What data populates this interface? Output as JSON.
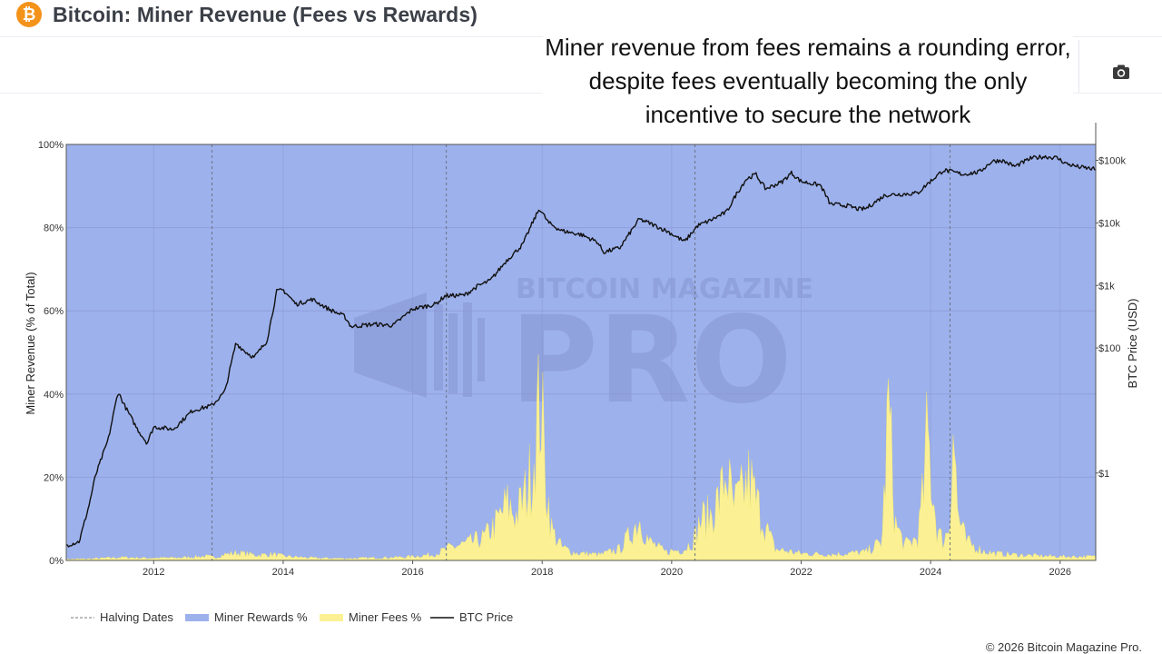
{
  "header": {
    "title": "Bitcoin: Miner Revenue (Fees vs Rewards)",
    "logo_icon": "bitcoin-logo-icon",
    "logo_glyph": "₿",
    "camera_icon": "camera-icon"
  },
  "annotation": "Miner revenue from fees remains a rounding error, despite fees eventually becoming the only incentive to secure the network",
  "watermark": {
    "line1": "BITCOIN MAGAZINE",
    "line2": "PRO"
  },
  "footer": {
    "copyright": "© 2026 Bitcoin Magazine Pro."
  },
  "legend": [
    {
      "label": "Halving Dates",
      "kind": "dash",
      "color": "#777777"
    },
    {
      "label": "Miner Rewards %",
      "kind": "fill",
      "color": "#9db1ec"
    },
    {
      "label": "Miner Fees %",
      "kind": "fill",
      "color": "#fbf194"
    },
    {
      "label": "BTC Price",
      "kind": "line",
      "color": "#111111"
    }
  ],
  "chart_data": {
    "type": "area",
    "xlabel": "",
    "ylabel": "Miner Revenue (% of Total)",
    "y2label": "BTC Price (USD)",
    "x_range": [
      2010.65,
      2026.55
    ],
    "ylim": [
      0,
      100
    ],
    "y2_scale": "log",
    "y2_range": [
      0.04,
      180000
    ],
    "x_ticks": [
      2012,
      2014,
      2016,
      2018,
      2020,
      2022,
      2024,
      2026
    ],
    "y_ticks": [
      {
        "value": 0,
        "label": "0%"
      },
      {
        "value": 20,
        "label": "20%"
      },
      {
        "value": 40,
        "label": "40%"
      },
      {
        "value": 60,
        "label": "60%"
      },
      {
        "value": 80,
        "label": "80%"
      },
      {
        "value": 100,
        "label": "100%"
      }
    ],
    "y2_ticks": [
      {
        "value": 1,
        "label": "$1"
      },
      {
        "value": 100,
        "label": "$100"
      },
      {
        "value": 1000,
        "label": "$1k"
      },
      {
        "value": 10000,
        "label": "$10k"
      },
      {
        "value": 100000,
        "label": "$100k"
      }
    ],
    "halving_dates": [
      2012.9,
      2016.52,
      2020.36,
      2024.3
    ],
    "grid": true,
    "legend_position": "bottom-left",
    "colors": {
      "rewards": "#9db1ec",
      "fees": "#fbf194",
      "price": "#111111",
      "halving": "#6b7280"
    },
    "series": [
      {
        "name": "Miner Rewards %",
        "note": "complement of Miner Fees % (100 - fees)"
      },
      {
        "name": "Miner Fees %",
        "points": [
          [
            2010.65,
            0.3
          ],
          [
            2011.0,
            0.4
          ],
          [
            2011.5,
            0.8
          ],
          [
            2011.9,
            0.6
          ],
          [
            2012.4,
            0.7
          ],
          [
            2012.8,
            1.1
          ],
          [
            2012.95,
            0.8
          ],
          [
            2013.1,
            1.6
          ],
          [
            2013.3,
            2.0
          ],
          [
            2013.6,
            1.4
          ],
          [
            2013.85,
            1.6
          ],
          [
            2014.0,
            1.1
          ],
          [
            2014.5,
            0.6
          ],
          [
            2015.0,
            0.5
          ],
          [
            2015.5,
            0.7
          ],
          [
            2015.9,
            0.9
          ],
          [
            2016.3,
            1.5
          ],
          [
            2016.45,
            2.4
          ],
          [
            2016.6,
            3.5
          ],
          [
            2016.85,
            4.5
          ],
          [
            2017.1,
            6.0
          ],
          [
            2017.3,
            10.0
          ],
          [
            2017.45,
            15.0
          ],
          [
            2017.6,
            12.0
          ],
          [
            2017.75,
            18.0
          ],
          [
            2017.85,
            25.0
          ],
          [
            2017.93,
            38.0
          ],
          [
            2017.98,
            44.0
          ],
          [
            2018.05,
            22.0
          ],
          [
            2018.15,
            8.0
          ],
          [
            2018.3,
            3.5
          ],
          [
            2018.5,
            2.0
          ],
          [
            2018.9,
            1.5
          ],
          [
            2019.2,
            3.0
          ],
          [
            2019.4,
            8.0
          ],
          [
            2019.5,
            11.0
          ],
          [
            2019.65,
            5.0
          ],
          [
            2019.9,
            2.2
          ],
          [
            2020.2,
            3.0
          ],
          [
            2020.36,
            6.0
          ],
          [
            2020.45,
            11.0
          ],
          [
            2020.6,
            12.0
          ],
          [
            2020.75,
            17.0
          ],
          [
            2020.85,
            24.0
          ],
          [
            2020.95,
            14.0
          ],
          [
            2021.1,
            18.0
          ],
          [
            2021.2,
            22.0
          ],
          [
            2021.3,
            16.0
          ],
          [
            2021.45,
            9.0
          ],
          [
            2021.6,
            3.0
          ],
          [
            2022.0,
            1.8
          ],
          [
            2022.5,
            1.6
          ],
          [
            2023.0,
            2.2
          ],
          [
            2023.25,
            5.0
          ],
          [
            2023.35,
            42.0
          ],
          [
            2023.45,
            10.0
          ],
          [
            2023.6,
            4.0
          ],
          [
            2023.8,
            6.0
          ],
          [
            2023.9,
            20.0
          ],
          [
            2023.95,
            35.0
          ],
          [
            2024.0,
            24.0
          ],
          [
            2024.1,
            8.0
          ],
          [
            2024.2,
            5.0
          ],
          [
            2024.3,
            10.0
          ],
          [
            2024.34,
            41.0
          ],
          [
            2024.42,
            12.0
          ],
          [
            2024.55,
            5.0
          ],
          [
            2024.8,
            2.5
          ],
          [
            2025.0,
            1.8
          ],
          [
            2025.5,
            1.3
          ],
          [
            2026.0,
            1.0
          ],
          [
            2026.55,
            1.0
          ]
        ]
      },
      {
        "name": "BTC Price",
        "points": [
          [
            2010.65,
            0.07
          ],
          [
            2010.85,
            0.08
          ],
          [
            2011.0,
            0.3
          ],
          [
            2011.1,
            0.9
          ],
          [
            2011.3,
            3.5
          ],
          [
            2011.45,
            20.0
          ],
          [
            2011.55,
            12.0
          ],
          [
            2011.75,
            5.0
          ],
          [
            2011.9,
            3.0
          ],
          [
            2012.0,
            5.5
          ],
          [
            2012.3,
            5.0
          ],
          [
            2012.6,
            10.0
          ],
          [
            2012.9,
            12.0
          ],
          [
            2013.1,
            20.0
          ],
          [
            2013.27,
            120.0
          ],
          [
            2013.4,
            90.0
          ],
          [
            2013.55,
            70.0
          ],
          [
            2013.75,
            130.0
          ],
          [
            2013.9,
            800.0
          ],
          [
            2014.0,
            850.0
          ],
          [
            2014.2,
            500.0
          ],
          [
            2014.45,
            600.0
          ],
          [
            2014.7,
            420.0
          ],
          [
            2014.95,
            320.0
          ],
          [
            2015.05,
            220.0
          ],
          [
            2015.4,
            240.0
          ],
          [
            2015.7,
            230.0
          ],
          [
            2016.0,
            420.0
          ],
          [
            2016.35,
            500.0
          ],
          [
            2016.5,
            680.0
          ],
          [
            2016.8,
            700.0
          ],
          [
            2017.0,
            970.0
          ],
          [
            2017.2,
            1200.0
          ],
          [
            2017.45,
            2500.0
          ],
          [
            2017.7,
            4500.0
          ],
          [
            2017.85,
            10000.0
          ],
          [
            2017.96,
            17000.0
          ],
          [
            2018.1,
            10000.0
          ],
          [
            2018.3,
            7500.0
          ],
          [
            2018.6,
            6500.0
          ],
          [
            2018.85,
            5000.0
          ],
          [
            2018.95,
            3400.0
          ],
          [
            2019.2,
            4000.0
          ],
          [
            2019.5,
            11500.0
          ],
          [
            2019.7,
            9500.0
          ],
          [
            2019.95,
            7200.0
          ],
          [
            2020.2,
            5000.0
          ],
          [
            2020.4,
            9000.0
          ],
          [
            2020.6,
            11000.0
          ],
          [
            2020.85,
            15000.0
          ],
          [
            2021.0,
            29000.0
          ],
          [
            2021.15,
            50000.0
          ],
          [
            2021.3,
            60000.0
          ],
          [
            2021.45,
            35000.0
          ],
          [
            2021.7,
            45000.0
          ],
          [
            2021.85,
            63000.0
          ],
          [
            2022.0,
            46000.0
          ],
          [
            2022.3,
            40000.0
          ],
          [
            2022.45,
            20000.0
          ],
          [
            2022.7,
            19000.0
          ],
          [
            2022.9,
            16500.0
          ],
          [
            2023.0,
            17000.0
          ],
          [
            2023.3,
            28000.0
          ],
          [
            2023.6,
            29000.0
          ],
          [
            2023.8,
            30000.0
          ],
          [
            2023.95,
            42000.0
          ],
          [
            2024.2,
            70000.0
          ],
          [
            2024.5,
            60000.0
          ],
          [
            2024.75,
            65000.0
          ],
          [
            2024.95,
            97000.0
          ],
          [
            2025.1,
            100000.0
          ],
          [
            2025.3,
            80000.0
          ],
          [
            2025.55,
            108000.0
          ],
          [
            2025.75,
            115000.0
          ],
          [
            2025.95,
            110000.0
          ],
          [
            2026.1,
            88000.0
          ],
          [
            2026.3,
            78000.0
          ],
          [
            2026.55,
            72000.0
          ]
        ]
      }
    ]
  }
}
